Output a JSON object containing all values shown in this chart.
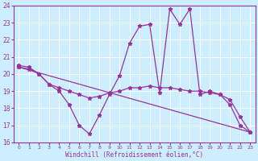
{
  "xlabel": "Windchill (Refroidissement éolien,°C)",
  "bg_color": "#cceeff",
  "line_color": "#993399",
  "xlim": [
    -0.5,
    23.5
  ],
  "ylim": [
    16,
    24
  ],
  "xticks": [
    0,
    1,
    2,
    3,
    4,
    5,
    6,
    7,
    8,
    9,
    10,
    11,
    12,
    13,
    14,
    15,
    16,
    17,
    18,
    19,
    20,
    21,
    22,
    23
  ],
  "yticks": [
    16,
    17,
    18,
    19,
    20,
    21,
    22,
    23,
    24
  ],
  "curve1_x": [
    0,
    1,
    2,
    3,
    4,
    5,
    6,
    7,
    8,
    9,
    10,
    11,
    12,
    13,
    14,
    15,
    16,
    17,
    18,
    19,
    20,
    21,
    22,
    23
  ],
  "curve1_y": [
    20.5,
    20.4,
    20.0,
    19.4,
    19.0,
    18.2,
    17.0,
    16.5,
    17.6,
    18.8,
    19.9,
    21.8,
    22.8,
    22.9,
    18.9,
    23.8,
    22.9,
    23.8,
    18.8,
    19.0,
    18.8,
    18.2,
    17.0,
    16.6
  ],
  "curve2_x": [
    0,
    1,
    2,
    3,
    4,
    5,
    6,
    7,
    8,
    9,
    10,
    11,
    12,
    13,
    14,
    15,
    16,
    17,
    18,
    19,
    20,
    21,
    22,
    23
  ],
  "curve2_y": [
    20.4,
    20.3,
    20.0,
    19.4,
    19.2,
    19.0,
    18.8,
    18.6,
    18.7,
    18.9,
    19.0,
    19.2,
    19.2,
    19.3,
    19.2,
    19.2,
    19.1,
    19.0,
    19.0,
    18.9,
    18.8,
    18.5,
    17.5,
    16.6
  ],
  "curve3_x": [
    0,
    23
  ],
  "curve3_y": [
    20.4,
    16.6
  ]
}
